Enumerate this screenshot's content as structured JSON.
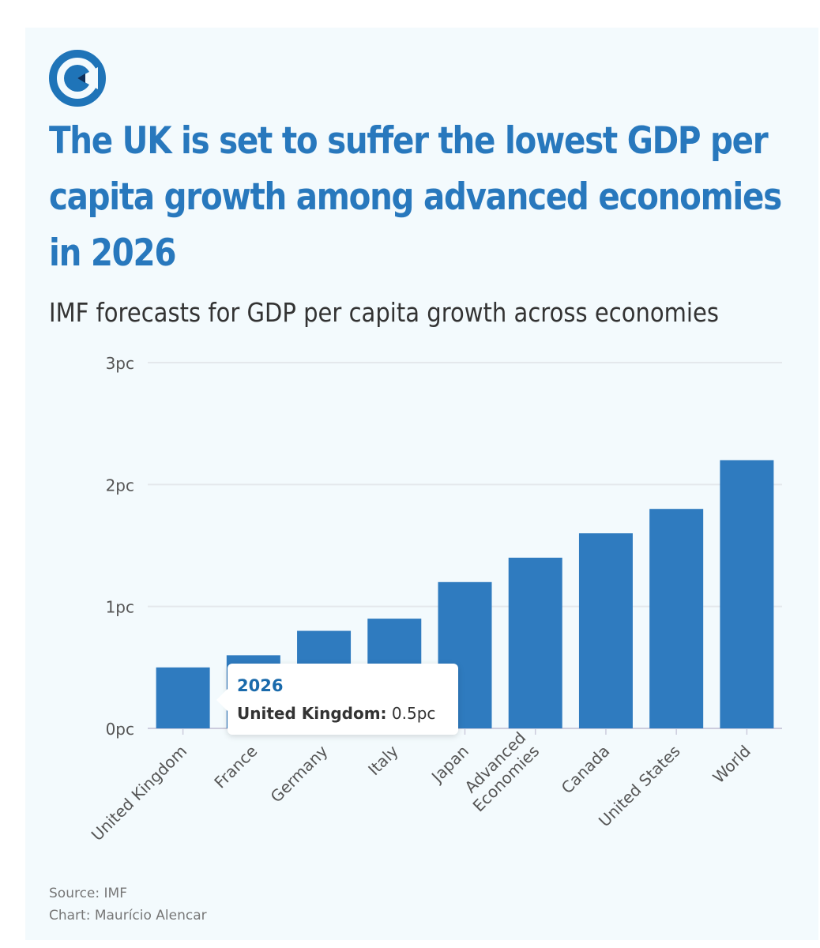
{
  "title": "The UK is set to suffer the lowest GDP per capita growth among advanced economies in 2026",
  "subtitle": "IMF forecasts for GDP per capita growth across economies",
  "colors": {
    "bar": "#2f7bbf",
    "title": "#2878bd",
    "background": "#f3fafd"
  },
  "tooltip": {
    "year": "2026",
    "label": "United Kingdom:",
    "value": "0.5pc"
  },
  "footer": {
    "source": "Source: IMF",
    "credit": "Chart: Maurício Alencar"
  },
  "chart_data": {
    "type": "bar",
    "categories": [
      "United Kingdom",
      "France",
      "Germany",
      "Italy",
      "Japan",
      "Advanced Economies",
      "Canada",
      "United States",
      "World"
    ],
    "category_lines": [
      [
        "United Kingdom"
      ],
      [
        "France"
      ],
      [
        "Germany"
      ],
      [
        "Italy"
      ],
      [
        "Japan"
      ],
      [
        "Advanced",
        "Economies"
      ],
      [
        "Canada"
      ],
      [
        "United States"
      ],
      [
        "World"
      ]
    ],
    "values": [
      0.5,
      0.6,
      0.8,
      0.9,
      1.2,
      1.4,
      1.6,
      1.8,
      2.2
    ],
    "ylim": [
      0,
      3
    ],
    "yticks": [
      0,
      1,
      2,
      3
    ],
    "ytick_labels": [
      "0pc",
      "1pc",
      "2pc",
      "3pc"
    ],
    "series_name": "2026",
    "grid": true,
    "xlabel": "",
    "ylabel": ""
  }
}
